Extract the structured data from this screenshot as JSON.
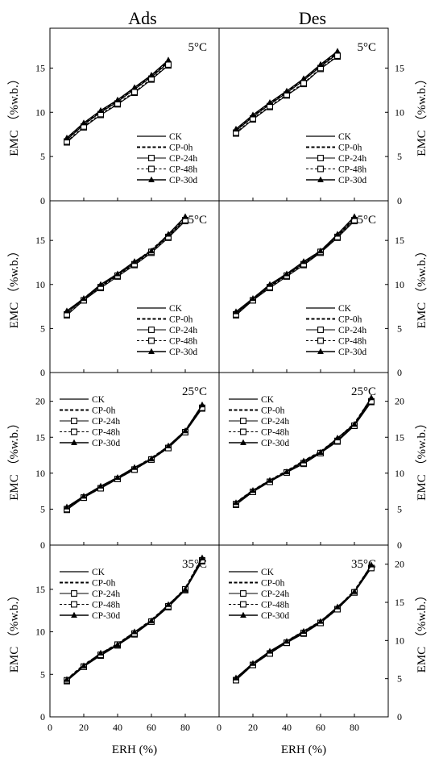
{
  "figure": {
    "column_titles": [
      "Ads",
      "Des"
    ],
    "xlabel": "ERH (%)",
    "ylabel": "EMC （%w.b.）",
    "legend_labels": [
      "CK",
      "CP-0h",
      "CP-24h",
      "CP-48h",
      "CP-30d"
    ],
    "xticks": [
      0,
      20,
      40,
      60,
      80
    ]
  },
  "chart_data": [
    {
      "type": "line",
      "title": "5°C",
      "panel": "Ads",
      "x": [
        10,
        20,
        30,
        40,
        50,
        60,
        70
      ],
      "ylim": [
        0,
        19.5
      ],
      "yticks": [
        0,
        5,
        10,
        15
      ],
      "legend": "bottom-right",
      "series": [
        {
          "name": "CK",
          "values": [
            6.9,
            8.6,
            10.0,
            11.2,
            12.6,
            14.0,
            15.6
          ]
        },
        {
          "name": "CP-0h",
          "values": [
            7.0,
            8.7,
            10.1,
            11.3,
            12.7,
            14.1,
            15.7
          ]
        },
        {
          "name": "CP-24h",
          "values": [
            6.6,
            8.3,
            9.7,
            10.9,
            12.2,
            13.7,
            15.3
          ]
        },
        {
          "name": "CP-48h",
          "values": [
            6.7,
            8.4,
            9.8,
            11.0,
            12.3,
            13.8,
            15.4
          ]
        },
        {
          "name": "CP-30d",
          "values": [
            7.1,
            8.8,
            10.2,
            11.4,
            12.8,
            14.2,
            15.9
          ]
        }
      ]
    },
    {
      "type": "line",
      "title": "5°C",
      "panel": "Des",
      "x": [
        10,
        20,
        30,
        40,
        50,
        60,
        70
      ],
      "ylim": [
        0,
        19.5
      ],
      "yticks": [
        0,
        5,
        10,
        15
      ],
      "legend": "bottom-right",
      "series": [
        {
          "name": "CK",
          "values": [
            7.9,
            9.5,
            10.9,
            12.2,
            13.6,
            15.2,
            16.6
          ]
        },
        {
          "name": "CP-0h",
          "values": [
            8.0,
            9.6,
            11.0,
            12.3,
            13.7,
            15.3,
            16.7
          ]
        },
        {
          "name": "CP-24h",
          "values": [
            7.6,
            9.2,
            10.6,
            11.9,
            13.2,
            14.9,
            16.3
          ]
        },
        {
          "name": "CP-48h",
          "values": [
            7.7,
            9.3,
            10.7,
            12.0,
            13.3,
            15.0,
            16.4
          ]
        },
        {
          "name": "CP-30d",
          "values": [
            8.1,
            9.7,
            11.1,
            12.4,
            13.8,
            15.4,
            16.9
          ]
        }
      ]
    },
    {
      "type": "line",
      "title": "15°C",
      "panel": "Ads",
      "x": [
        10,
        20,
        30,
        40,
        50,
        60,
        70,
        80
      ],
      "ylim": [
        0,
        19.5
      ],
      "yticks": [
        0,
        5,
        10,
        15
      ],
      "legend": "bottom-right",
      "series": [
        {
          "name": "CK",
          "values": [
            6.8,
            8.3,
            9.8,
            11.1,
            12.4,
            13.8,
            15.5,
            17.4
          ]
        },
        {
          "name": "CP-0h",
          "values": [
            6.9,
            8.4,
            9.9,
            11.2,
            12.5,
            13.9,
            15.6,
            17.6
          ]
        },
        {
          "name": "CP-24h",
          "values": [
            6.5,
            8.2,
            9.6,
            10.9,
            12.2,
            13.6,
            15.3,
            17.2
          ]
        },
        {
          "name": "CP-48h",
          "values": [
            6.6,
            8.2,
            9.7,
            11.0,
            12.3,
            13.7,
            15.4,
            17.3
          ]
        },
        {
          "name": "CP-30d",
          "values": [
            7.0,
            8.4,
            10.0,
            11.2,
            12.6,
            13.8,
            15.7,
            17.7
          ]
        }
      ]
    },
    {
      "type": "line",
      "title": "15°C",
      "panel": "Des",
      "x": [
        10,
        20,
        30,
        40,
        50,
        60,
        70,
        80
      ],
      "ylim": [
        0,
        19.5
      ],
      "yticks": [
        0,
        5,
        10,
        15
      ],
      "legend": "bottom-right",
      "series": [
        {
          "name": "CK",
          "values": [
            6.7,
            8.3,
            9.8,
            11.1,
            12.4,
            13.7,
            15.5,
            17.4
          ]
        },
        {
          "name": "CP-0h",
          "values": [
            6.8,
            8.4,
            9.9,
            11.2,
            12.5,
            13.8,
            15.6,
            17.6
          ]
        },
        {
          "name": "CP-24h",
          "values": [
            6.5,
            8.2,
            9.6,
            10.9,
            12.2,
            13.6,
            15.3,
            17.2
          ]
        },
        {
          "name": "CP-48h",
          "values": [
            6.6,
            8.2,
            9.7,
            11.0,
            12.3,
            13.7,
            15.4,
            17.3
          ]
        },
        {
          "name": "CP-30d",
          "values": [
            6.9,
            8.4,
            10.0,
            11.2,
            12.6,
            13.8,
            15.7,
            17.7
          ]
        }
      ]
    },
    {
      "type": "line",
      "title": "25°C",
      "panel": "Ads",
      "x": [
        10,
        20,
        30,
        40,
        50,
        60,
        70,
        80,
        90
      ],
      "ylim": [
        0,
        24
      ],
      "yticks": [
        0,
        5,
        10,
        15,
        20
      ],
      "legend": "top-left",
      "series": [
        {
          "name": "CK",
          "values": [
            5.1,
            6.7,
            8.0,
            9.3,
            10.6,
            12.0,
            13.6,
            15.8,
            19.2
          ]
        },
        {
          "name": "CP-0h",
          "values": [
            5.2,
            6.8,
            8.1,
            9.4,
            10.7,
            12.1,
            13.7,
            15.9,
            19.4
          ]
        },
        {
          "name": "CP-24h",
          "values": [
            4.9,
            6.6,
            7.9,
            9.2,
            10.5,
            11.9,
            13.5,
            15.7,
            19.0
          ]
        },
        {
          "name": "CP-48h",
          "values": [
            5.0,
            6.6,
            7.9,
            9.2,
            10.5,
            11.9,
            13.5,
            15.7,
            19.1
          ]
        },
        {
          "name": "CP-30d",
          "values": [
            5.3,
            6.8,
            8.2,
            9.4,
            10.8,
            12.0,
            13.8,
            15.9,
            19.5
          ]
        }
      ]
    },
    {
      "type": "line",
      "title": "25°C",
      "panel": "Des",
      "x": [
        10,
        20,
        30,
        40,
        50,
        60,
        70,
        80,
        90
      ],
      "ylim": [
        0,
        24
      ],
      "yticks": [
        0,
        5,
        10,
        15,
        20
      ],
      "legend": "top-left",
      "series": [
        {
          "name": "CK",
          "values": [
            5.8,
            7.5,
            8.9,
            10.2,
            11.5,
            12.9,
            14.6,
            16.7,
            20.2
          ]
        },
        {
          "name": "CP-0h",
          "values": [
            5.9,
            7.6,
            9.0,
            10.3,
            11.7,
            13.0,
            14.8,
            16.9,
            20.4
          ]
        },
        {
          "name": "CP-24h",
          "values": [
            5.6,
            7.4,
            8.8,
            10.1,
            11.3,
            12.8,
            14.4,
            16.6,
            19.9
          ]
        },
        {
          "name": "CP-48h",
          "values": [
            5.7,
            7.4,
            8.8,
            10.1,
            11.4,
            12.8,
            14.5,
            16.6,
            20.0
          ]
        },
        {
          "name": "CP-30d",
          "values": [
            5.9,
            7.6,
            9.0,
            10.2,
            11.7,
            12.9,
            14.9,
            16.8,
            20.5
          ]
        }
      ]
    },
    {
      "type": "line",
      "title": "35°C",
      "panel": "Ads",
      "x": [
        10,
        20,
        30,
        40,
        50,
        60,
        70,
        80,
        90
      ],
      "ylim": [
        0,
        20.2
      ],
      "yticks": [
        0,
        5,
        10,
        15
      ],
      "legend": "top-left",
      "series": [
        {
          "name": "CK",
          "values": [
            4.3,
            6.0,
            7.3,
            8.5,
            9.8,
            11.3,
            13.0,
            15.0,
            18.5
          ]
        },
        {
          "name": "CP-0h",
          "values": [
            4.4,
            6.1,
            7.4,
            8.6,
            9.9,
            11.4,
            13.1,
            15.1,
            18.7
          ]
        },
        {
          "name": "CP-24h",
          "values": [
            4.2,
            5.9,
            7.2,
            8.4,
            9.7,
            11.2,
            12.9,
            14.9,
            18.3
          ]
        },
        {
          "name": "CP-48h",
          "values": [
            4.3,
            5.9,
            7.3,
            8.5,
            9.8,
            11.2,
            13.0,
            15.0,
            18.4
          ]
        },
        {
          "name": "CP-30d",
          "values": [
            4.4,
            6.0,
            7.5,
            8.5,
            10.0,
            11.3,
            13.2,
            15.0,
            18.7
          ]
        }
      ]
    },
    {
      "type": "line",
      "title": "35°C",
      "panel": "Des",
      "x": [
        10,
        20,
        30,
        40,
        50,
        60,
        70,
        80,
        90
      ],
      "ylim": [
        0,
        22.5
      ],
      "yticks": [
        0,
        5,
        10,
        15,
        20
      ],
      "legend": "top-left",
      "series": [
        {
          "name": "CK",
          "values": [
            4.9,
            6.9,
            8.4,
            9.8,
            11.0,
            12.4,
            14.2,
            16.4,
            19.6
          ]
        },
        {
          "name": "CP-0h",
          "values": [
            5.0,
            7.0,
            8.5,
            9.9,
            11.2,
            12.5,
            14.3,
            16.5,
            19.8
          ]
        },
        {
          "name": "CP-24h",
          "values": [
            4.8,
            6.8,
            8.3,
            9.7,
            10.9,
            12.3,
            14.1,
            16.3,
            19.5
          ]
        },
        {
          "name": "CP-48h",
          "values": [
            4.8,
            6.8,
            8.3,
            9.7,
            11.0,
            12.3,
            14.1,
            16.3,
            19.5
          ]
        },
        {
          "name": "CP-30d",
          "values": [
            5.1,
            7.0,
            8.6,
            9.9,
            11.2,
            12.5,
            14.4,
            16.4,
            19.9
          ]
        }
      ]
    }
  ]
}
